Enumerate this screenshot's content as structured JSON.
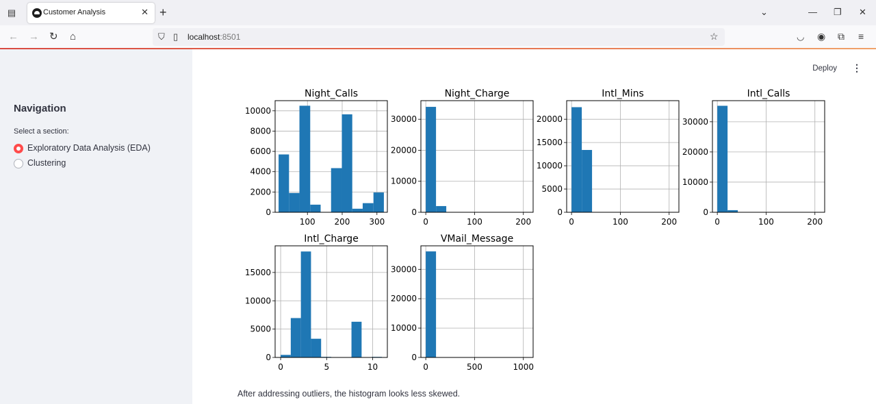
{
  "browser": {
    "tab_title": "Customer Analysis",
    "url_host": "localhost",
    "url_port": ":8501"
  },
  "sidebar": {
    "title": "Navigation",
    "select_label": "Select a section:",
    "options": [
      {
        "label": "Exploratory Data Analysis (EDA)",
        "selected": true
      },
      {
        "label": "Clustering",
        "selected": false
      }
    ]
  },
  "header": {
    "deploy_label": "Deploy"
  },
  "caption": "After addressing outliers, the histogram looks less skewed.",
  "colors": {
    "bar": "#1f77b4",
    "radio_accent": "#ff4b4b",
    "sidebar_bg": "#f0f2f6"
  },
  "chart_data": [
    {
      "type": "bar",
      "title": "Night_Calls",
      "bins": [
        [
          17,
          47,
          5700
        ],
        [
          47,
          77,
          1900
        ],
        [
          77,
          108,
          10500
        ],
        [
          108,
          138,
          750
        ],
        [
          138,
          168,
          0
        ],
        [
          168,
          199,
          4350
        ],
        [
          199,
          229,
          9650
        ],
        [
          229,
          259,
          350
        ],
        [
          259,
          290,
          900
        ],
        [
          290,
          320,
          1950
        ]
      ],
      "xlim": [
        7,
        330
      ],
      "ylim": [
        0,
        11000
      ],
      "xticks": [
        100,
        200,
        300
      ],
      "yticks": [
        0,
        2000,
        4000,
        6000,
        8000,
        10000
      ]
    },
    {
      "type": "bar",
      "title": "Night_Charge",
      "bins": [
        [
          0,
          21,
          34000
        ],
        [
          21,
          42,
          2000
        ],
        [
          42,
          63,
          0
        ],
        [
          63,
          84,
          0
        ],
        [
          84,
          105,
          0
        ],
        [
          105,
          126,
          0
        ],
        [
          126,
          147,
          0
        ],
        [
          147,
          168,
          0
        ],
        [
          168,
          189,
          0
        ],
        [
          189,
          210,
          50
        ]
      ],
      "xlim": [
        -10,
        220
      ],
      "ylim": [
        0,
        36000
      ],
      "xticks": [
        0,
        100,
        200
      ],
      "yticks": [
        0,
        10000,
        20000,
        30000
      ]
    },
    {
      "type": "bar",
      "title": "Intl_Mins",
      "bins": [
        [
          0,
          21,
          22600
        ],
        [
          21,
          42,
          13400
        ],
        [
          42,
          63,
          0
        ],
        [
          63,
          84,
          0
        ],
        [
          84,
          105,
          0
        ],
        [
          105,
          126,
          0
        ],
        [
          126,
          147,
          0
        ],
        [
          147,
          168,
          0
        ],
        [
          168,
          189,
          0
        ],
        [
          189,
          210,
          50
        ]
      ],
      "xlim": [
        -10,
        220
      ],
      "ylim": [
        0,
        24000
      ],
      "xticks": [
        0,
        100,
        200
      ],
      "yticks": [
        0,
        5000,
        10000,
        15000,
        20000
      ]
    },
    {
      "type": "bar",
      "title": "Intl_Calls",
      "bins": [
        [
          0,
          21,
          35300
        ],
        [
          21,
          42,
          700
        ],
        [
          42,
          63,
          0
        ],
        [
          63,
          84,
          0
        ],
        [
          84,
          105,
          0
        ],
        [
          105,
          126,
          0
        ],
        [
          126,
          147,
          0
        ],
        [
          147,
          168,
          0
        ],
        [
          168,
          189,
          0
        ],
        [
          189,
          210,
          30
        ]
      ],
      "xlim": [
        -10,
        220
      ],
      "ylim": [
        0,
        37000
      ],
      "xticks": [
        0,
        100,
        200
      ],
      "yticks": [
        0,
        10000,
        20000,
        30000
      ]
    },
    {
      "type": "bar",
      "title": "Intl_Charge",
      "bins": [
        [
          0,
          1.1,
          450
        ],
        [
          1.1,
          2.2,
          6950
        ],
        [
          2.2,
          3.3,
          18700
        ],
        [
          3.3,
          4.4,
          3300
        ],
        [
          4.4,
          5.5,
          100
        ],
        [
          5.5,
          6.6,
          0
        ],
        [
          6.6,
          7.7,
          0
        ],
        [
          7.7,
          8.8,
          6300
        ],
        [
          8.8,
          9.9,
          0
        ],
        [
          9.9,
          11,
          100
        ]
      ],
      "xlim": [
        -0.6,
        11.6
      ],
      "ylim": [
        0,
        19700
      ],
      "xticks": [
        0,
        5,
        10
      ],
      "yticks": [
        0,
        5000,
        10000,
        15000
      ]
    },
    {
      "type": "bar",
      "title": "VMail_Message",
      "bins": [
        [
          0,
          105,
          36100
        ],
        [
          105,
          210,
          0
        ],
        [
          210,
          315,
          0
        ],
        [
          315,
          420,
          0
        ],
        [
          420,
          525,
          0
        ],
        [
          525,
          630,
          0
        ],
        [
          630,
          735,
          0
        ],
        [
          735,
          840,
          0
        ],
        [
          840,
          945,
          0
        ],
        [
          945,
          1050,
          30
        ]
      ],
      "xlim": [
        -50,
        1100
      ],
      "ylim": [
        0,
        38000
      ],
      "xticks": [
        0,
        500,
        1000
      ],
      "yticks": [
        0,
        10000,
        20000,
        30000
      ]
    }
  ]
}
